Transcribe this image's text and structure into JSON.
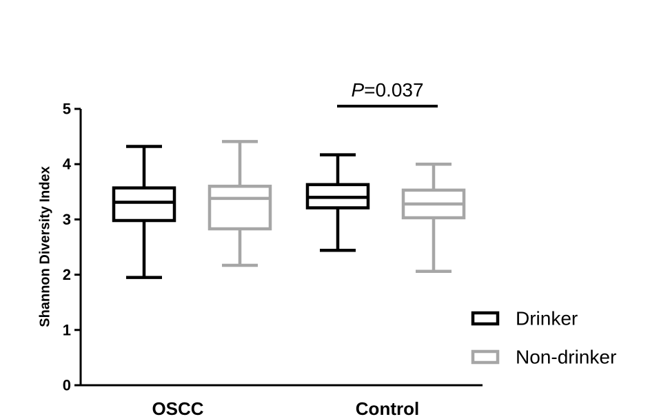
{
  "chart_data": {
    "type": "box",
    "ylabel": "Shannon Diversity Index",
    "ylim": [
      0,
      5
    ],
    "yticks": [
      "0",
      "1",
      "2",
      "3",
      "4",
      "5"
    ],
    "categories": [
      "OSCC",
      "Control"
    ],
    "series": [
      {
        "name": "Drinker",
        "color": "#000000",
        "boxes": [
          {
            "category": "OSCC",
            "min": 1.95,
            "q1": 2.98,
            "median": 3.31,
            "q3": 3.57,
            "max": 4.32
          },
          {
            "category": "Control",
            "min": 2.44,
            "q1": 3.21,
            "median": 3.4,
            "q3": 3.63,
            "max": 4.17
          }
        ]
      },
      {
        "name": "Non-drinker",
        "color": "#a6a6a6",
        "boxes": [
          {
            "category": "OSCC",
            "min": 2.17,
            "q1": 2.83,
            "median": 3.38,
            "q3": 3.6,
            "max": 4.41
          },
          {
            "category": "Control",
            "min": 2.06,
            "q1": 3.03,
            "median": 3.28,
            "q3": 3.53,
            "max": 4.0
          }
        ]
      }
    ],
    "annotation": {
      "p_label": "P",
      "p_value": "=0.037",
      "category": "Control"
    },
    "legend": {
      "placement": "bottom-right"
    }
  }
}
